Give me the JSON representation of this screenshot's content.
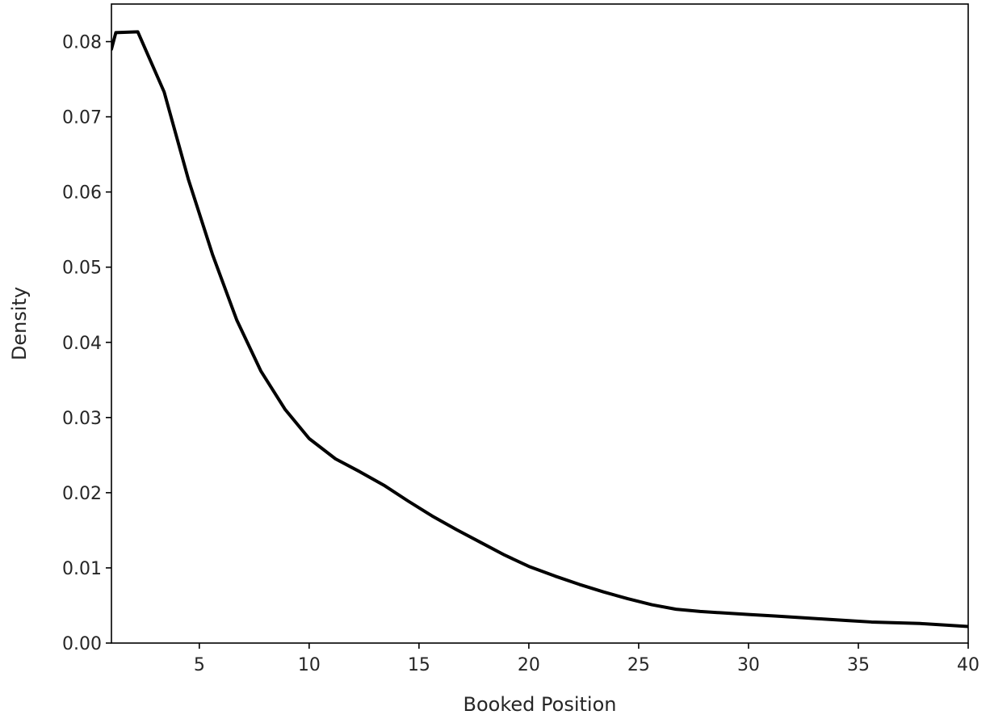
{
  "chart_data": {
    "type": "line",
    "title": "",
    "xlabel": "Booked Position",
    "ylabel": "Density",
    "xlim": [
      1,
      40
    ],
    "ylim": [
      0,
      0.085
    ],
    "grid": false,
    "legend": "none",
    "line_color": "#000000",
    "xticks": [
      5,
      10,
      15,
      20,
      25,
      30,
      35,
      40
    ],
    "xtick_labels": [
      "5",
      "10",
      "15",
      "20",
      "25",
      "30",
      "35",
      "40"
    ],
    "yticks": [
      0,
      0.01,
      0.02,
      0.03,
      0.04,
      0.05,
      0.06,
      0.07,
      0.08
    ],
    "ytick_labels": [
      "0.00",
      "0.01",
      "0.02",
      "0.03",
      "0.04",
      "0.05",
      "0.06",
      "0.07",
      "0.08"
    ],
    "series": [
      {
        "x": [
          1.0,
          1.2,
          2.2,
          3.4,
          4.5,
          5.6,
          6.7,
          7.8,
          8.9,
          10.0,
          11.2,
          12.3,
          13.4,
          14.5,
          15.6,
          16.7,
          17.8,
          18.9,
          20.0,
          21.2,
          22.3,
          23.4,
          24.5,
          25.6,
          26.7,
          27.8,
          28.9,
          30.0,
          31.2,
          32.3,
          33.4,
          34.5,
          35.6,
          36.7,
          37.8,
          38.9,
          40.0
        ],
        "values": [
          0.079,
          0.0812,
          0.0813,
          0.0733,
          0.0617,
          0.0517,
          0.043,
          0.0362,
          0.0311,
          0.0272,
          0.0245,
          0.0228,
          0.021,
          0.0189,
          0.0169,
          0.0151,
          0.0134,
          0.0117,
          0.0102,
          0.0089,
          0.0078,
          0.0068,
          0.0059,
          0.0051,
          0.0045,
          0.0042,
          0.004,
          0.0038,
          0.0036,
          0.0034,
          0.0032,
          0.003,
          0.0028,
          0.0027,
          0.0026,
          0.0024,
          0.0022
        ]
      }
    ]
  }
}
